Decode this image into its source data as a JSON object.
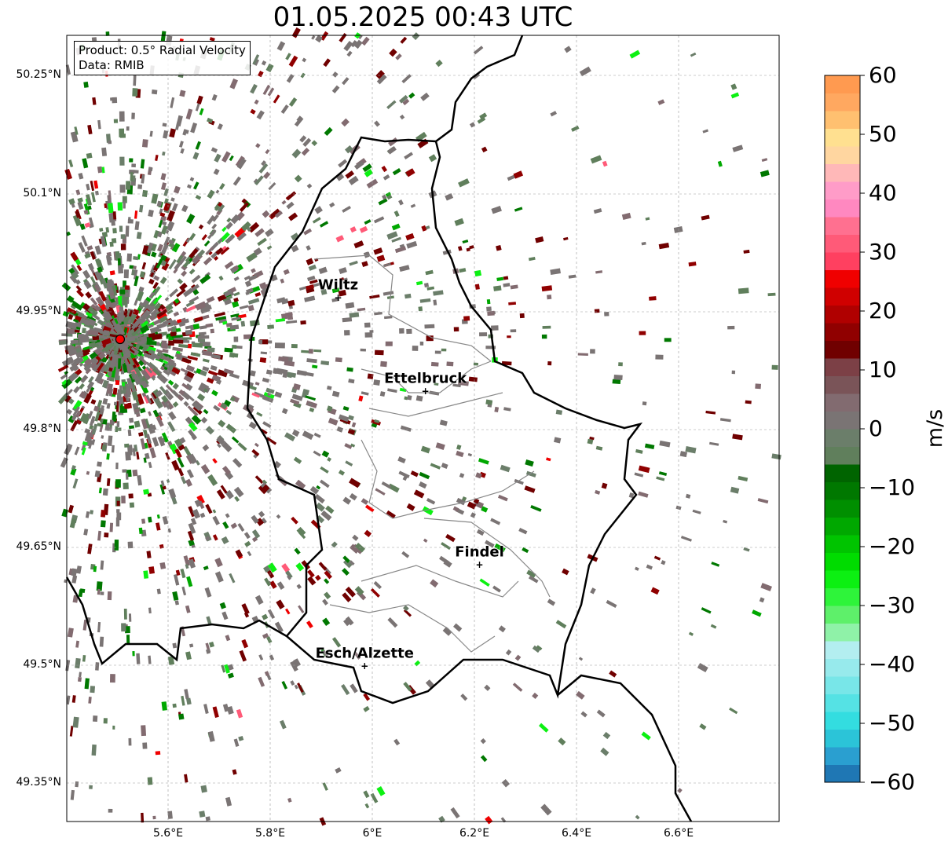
{
  "title": "01.05.2025 00:43 UTC",
  "info": {
    "product": "Product: 0.5° Radial Velocity",
    "data": "Data: RMIB"
  },
  "map": {
    "lon_range": [
      5.4015,
      5.7969
    ],
    "lat_range": [
      49.301,
      50.302
    ],
    "lon_ticks": [
      "5.6°E",
      "5.8°E",
      "6°E",
      "6.2°E",
      "6.4°E",
      "6.6°E"
    ],
    "lat_ticks": [
      "50.25°N",
      "50.1°N",
      "49.95°N",
      "49.8°N",
      "49.65°N",
      "49.5°N",
      "49.35°N"
    ],
    "radar_site": {
      "lon": 5.506,
      "lat": 49.914,
      "color": "#ff0000"
    },
    "cities": [
      {
        "name": "Wiltz",
        "lon": 5.933,
        "lat": 49.967
      },
      {
        "name": "Ettelbruck",
        "lon": 6.104,
        "lat": 49.848
      },
      {
        "name": "Findel",
        "lon": 6.21,
        "lat": 49.627
      },
      {
        "name": "Esch/Alzette",
        "lon": 5.985,
        "lat": 49.498
      }
    ]
  },
  "colorbar": {
    "label": "m/s",
    "min": -60,
    "max": 60,
    "ticks": [
      "60",
      "50",
      "40",
      "30",
      "20",
      "10",
      "0",
      "−10",
      "−20",
      "−30",
      "−40",
      "−50",
      "−60"
    ],
    "colors": [
      "#1f77b4",
      "#2a9fd0",
      "#2bc4d8",
      "#33dde0",
      "#55e2e4",
      "#78e6e8",
      "#97eaec",
      "#b3eef0",
      "#8ff2a8",
      "#5ef06a",
      "#2ef43a",
      "#0cf012",
      "#00dc00",
      "#00c400",
      "#00a800",
      "#008f00",
      "#007800",
      "#006400",
      "#607f5c",
      "#6b7e6a",
      "#7a7474",
      "#826b70",
      "#7a5458",
      "#7c4046",
      "#700000",
      "#900000",
      "#b00000",
      "#d00000",
      "#f00000",
      "#ff4060",
      "#ff5a78",
      "#ff7090",
      "#ff88c0",
      "#ff9cc8",
      "#ffb8b8",
      "#ffd6a0",
      "#ffe090",
      "#ffc070",
      "#ffa860",
      "#ff9a50"
    ]
  }
}
